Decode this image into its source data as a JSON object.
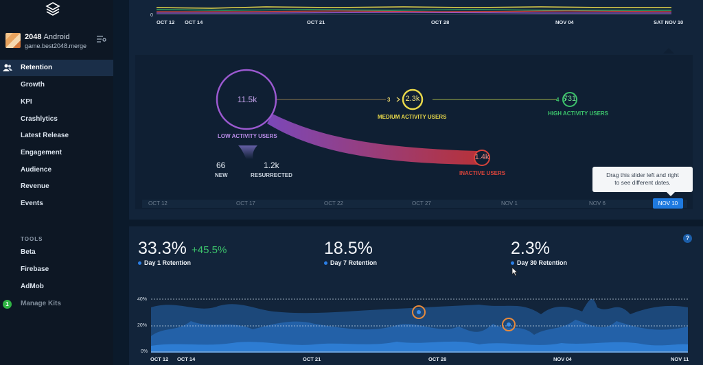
{
  "app": {
    "name": "2048",
    "platform": "Android",
    "package": "game.best2048.merge"
  },
  "sidebar": {
    "items": [
      {
        "label": "Retention",
        "active": true,
        "icon": "users-icon"
      },
      {
        "label": "Growth"
      },
      {
        "label": "KPI"
      },
      {
        "label": "Crashlytics"
      },
      {
        "label": "Latest Release"
      },
      {
        "label": "Engagement"
      },
      {
        "label": "Audience"
      },
      {
        "label": "Revenue"
      },
      {
        "label": "Events"
      }
    ],
    "tools_heading": "TOOLS",
    "tools": [
      {
        "label": "Beta"
      },
      {
        "label": "Firebase"
      },
      {
        "label": "AdMob"
      },
      {
        "label": "Manage Kits",
        "badge": "1"
      }
    ]
  },
  "top_chart": {
    "y_tick": "0",
    "dates": [
      "OCT 12",
      "OCT 14",
      "OCT 21",
      "OCT 28",
      "NOV 04",
      "SAT NOV 10"
    ],
    "colors": [
      "#e8d84a",
      "#3cc26b",
      "#d9443b",
      "#9b59d0"
    ]
  },
  "flow": {
    "low": {
      "value": "11.5k",
      "label": "LOW ACTIVITY USERS",
      "color": "#9b59d0"
    },
    "medium": {
      "step": "3",
      "value": "2.3k",
      "label": "MEDIUM ACTIVITY USERS",
      "color": "#e8d84a"
    },
    "high": {
      "step": "4",
      "value": "731",
      "label": "HIGH ACTIVITY USERS",
      "color": "#3cc26b"
    },
    "inactive": {
      "value": "1.4k",
      "label": "INACTIVE USERS",
      "color": "#d9443b"
    },
    "new": {
      "value": "66",
      "label": "NEW"
    },
    "resurrected": {
      "value": "1.2k",
      "label": "RESURRECTED"
    }
  },
  "slider": {
    "dates": [
      "OCT 12",
      "OCT 17",
      "OCT 22",
      "OCT 27",
      "NOV 1",
      "NOV 6"
    ],
    "selected": "NOV 10",
    "tooltip_line1": "Drag this slider left and right",
    "tooltip_line2": "to see different dates."
  },
  "retention": {
    "day1": {
      "value": "33.3%",
      "delta": "+45.5%",
      "label": "Day 1 Retention"
    },
    "day7": {
      "value": "18.5%",
      "label": "Day 7 Retention"
    },
    "day30": {
      "value": "2.3%",
      "label": "Day 30 Retention"
    },
    "help": "?",
    "y_ticks": [
      "40%",
      "20%",
      "0%"
    ],
    "x_dates": [
      "OCT 12",
      "OCT 14",
      "OCT 21",
      "OCT 28",
      "NOV 04",
      "NOV 11"
    ]
  }
}
